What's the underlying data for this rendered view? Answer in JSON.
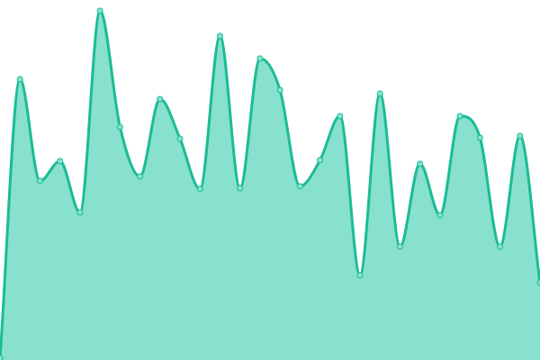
{
  "chart_data": {
    "type": "area",
    "title": "",
    "xlabel": "",
    "ylabel": "",
    "x": [
      0,
      1,
      2,
      3,
      4,
      5,
      6,
      7,
      8,
      9,
      10,
      11,
      12,
      13,
      14,
      15,
      16,
      17,
      18,
      19,
      20,
      21,
      22,
      23,
      24,
      25,
      26,
      27
    ],
    "series": [
      {
        "values": [
          2,
          312,
          199,
          221,
          164,
          388,
          259,
          204,
          290,
          246,
          190,
          360,
          191,
          335,
          300,
          193,
          222,
          271,
          94,
          296,
          126,
          218,
          161,
          271,
          247,
          126,
          249,
          86
        ]
      }
    ],
    "ylim": [
      0,
      400
    ],
    "grid": false,
    "axes_visible": false,
    "curve": "smooth",
    "colors": {
      "line": "#1bbc94",
      "fill": "#88e0cf",
      "point_fill": "#86e3cc",
      "point_stroke": "#1bbc94"
    }
  }
}
